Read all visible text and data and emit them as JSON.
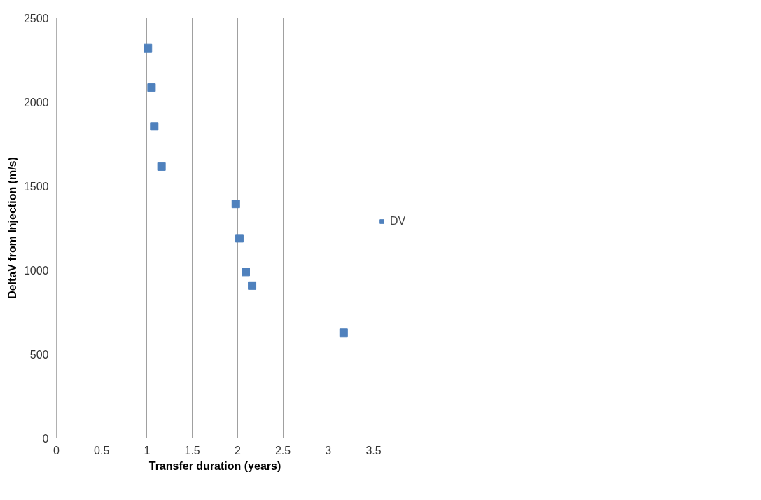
{
  "chart_data": {
    "type": "scatter",
    "xlabel": "Transfer duration (years)",
    "ylabel": "DeltaV from Injection (m/s)",
    "series": [
      {
        "name": "DV",
        "color": "#4f81bd",
        "x": [
          1.01,
          1.05,
          1.08,
          1.16,
          1.98,
          2.02,
          2.09,
          2.16,
          3.17
        ],
        "values": [
          2320,
          2085,
          1855,
          1615,
          1393,
          1188,
          988,
          907,
          626
        ]
      }
    ],
    "xlim": [
      0,
      3.5
    ],
    "xticks": [
      0,
      0.5,
      1,
      1.5,
      2,
      2.5,
      3,
      3.5
    ],
    "ylim": [
      0,
      2500
    ],
    "yticks": [
      0,
      500,
      1000,
      1500,
      2000,
      2500
    ],
    "grid": true,
    "legend": "right",
    "marker": "square"
  }
}
